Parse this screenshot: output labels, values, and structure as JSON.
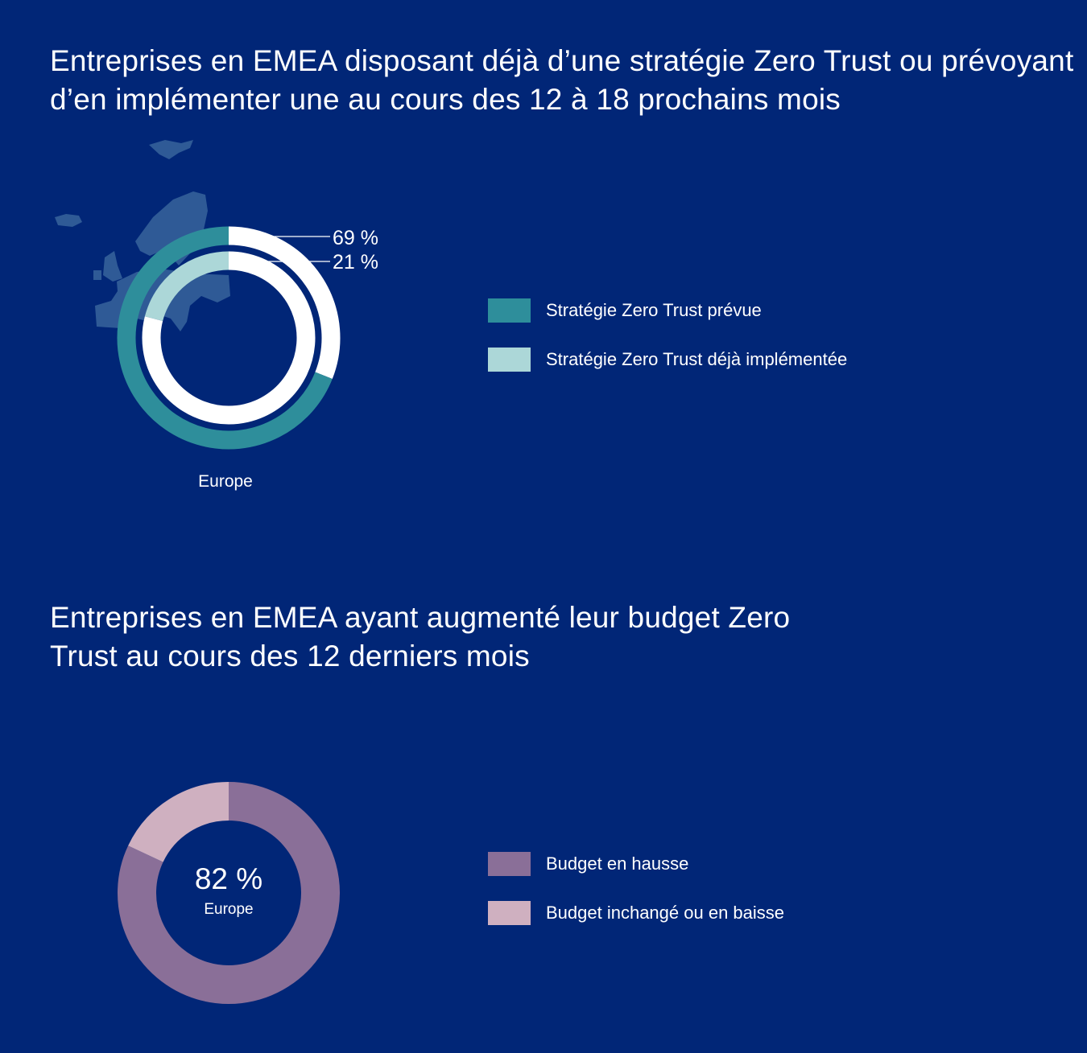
{
  "colors": {
    "background": "#012677",
    "map": "#2f5a96",
    "planned": "#2e8e9b",
    "implemented": "#acd7d8",
    "ring_rest": "#ffffff",
    "increase": "#8a6f98",
    "unchanged": "#cfb0c0"
  },
  "chart_data": [
    {
      "type": "donut",
      "title": "Entreprises en EMEA disposant déjà d’une stratégie Zero Trust ou prévoyant d’en implémenter une au cours des 12 à 18 prochains mois",
      "region": "Europe",
      "series": [
        {
          "name": "Stratégie Zero Trust prévue",
          "value": 69,
          "label": "69 %",
          "ring": "outer"
        },
        {
          "name": "Stratégie Zero Trust déjà implémentée",
          "value": 21,
          "label": "21 %",
          "ring": "inner"
        }
      ],
      "legend": [
        "Stratégie Zero Trust prévue",
        "Stratégie Zero Trust déjà implémentée"
      ],
      "legend_position": "right"
    },
    {
      "type": "pie",
      "title": "Entreprises en EMEA ayant augmenté leur budget Zero Trust au cours des 12 derniers mois",
      "region": "Europe",
      "center_label": "82 %",
      "slices": [
        {
          "name": "Budget en hausse",
          "value": 82
        },
        {
          "name": "Budget inchangé ou en baisse",
          "value": 18
        }
      ],
      "legend": [
        "Budget en hausse",
        "Budget inchangé ou en baisse"
      ],
      "legend_position": "right"
    }
  ]
}
